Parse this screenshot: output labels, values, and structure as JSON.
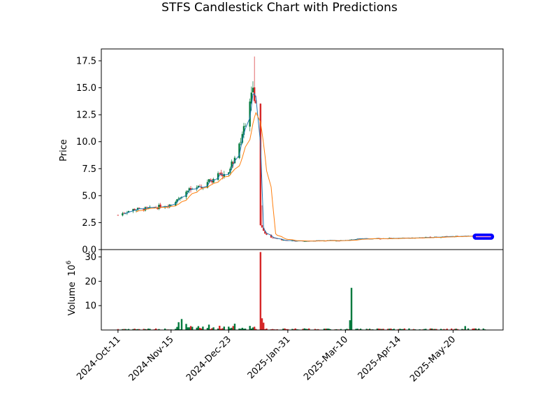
{
  "chart_data": {
    "type": "candlestick",
    "title": "STFS Candlestick Chart with Predictions",
    "price_panel": {
      "ylabel": "Price",
      "ylim": [
        0,
        18.6
      ],
      "yticks": [
        "0.0",
        "2.5",
        "5.0",
        "7.5",
        "10.0",
        "12.5",
        "15.0",
        "17.5"
      ],
      "ytick_values": [
        0,
        2.5,
        5,
        7.5,
        10,
        12.5,
        15,
        17.5
      ]
    },
    "volume_panel": {
      "ylabel": "Volume",
      "yunit": "10",
      "yunit_exp": "6",
      "ylim": [
        0,
        33
      ],
      "yticks": [
        "10",
        "20",
        "30"
      ],
      "ytick_values": [
        10,
        20,
        30
      ]
    },
    "x_axis": {
      "start": "2024-09-30",
      "end": "2025-06-22",
      "ticks": [
        "2024-Oct-11",
        "2024-Nov-15",
        "2024-Dec-23",
        "2025-Jan-31",
        "2025-Mar-10",
        "2025-Apr-14",
        "2025-May-20"
      ],
      "tick_dates": [
        "2024-10-11",
        "2024-11-15",
        "2024-12-23",
        "2025-01-31",
        "2025-03-10",
        "2025-04-14",
        "2025-05-20"
      ]
    },
    "price_anchors": [
      [
        "2024-10-11",
        3.2
      ],
      [
        "2024-10-20",
        3.7
      ],
      [
        "2024-11-01",
        3.8
      ],
      [
        "2024-11-15",
        4.2
      ],
      [
        "2024-11-25",
        5.4
      ],
      [
        "2024-12-05",
        5.8
      ],
      [
        "2024-12-15",
        6.8
      ],
      [
        "2024-12-23",
        7.3
      ],
      [
        "2024-12-30",
        9.5
      ],
      [
        "2025-01-03",
        12.0
      ],
      [
        "2025-01-07",
        15.0
      ],
      [
        "2025-01-10",
        14.0
      ],
      [
        "2025-01-13",
        2.3
      ],
      [
        "2025-01-16",
        1.5
      ],
      [
        "2025-01-20",
        1.1
      ],
      [
        "2025-01-31",
        0.8
      ],
      [
        "2025-03-10",
        0.85
      ],
      [
        "2025-03-20",
        1.0
      ],
      [
        "2025-04-14",
        1.05
      ],
      [
        "2025-05-20",
        1.2
      ],
      [
        "2025-06-10",
        1.25
      ]
    ],
    "volume_spikes": [
      [
        "2025-01-13",
        32.0
      ],
      [
        "2025-01-14",
        4.8
      ],
      [
        "2025-03-14",
        17.3
      ],
      [
        "2025-03-13",
        4.0
      ],
      [
        "2024-11-22",
        4.5
      ],
      [
        "2024-11-20",
        3.2
      ],
      [
        "2024-11-25",
        2.5
      ],
      [
        "2024-12-10",
        2.2
      ],
      [
        "2024-12-27",
        2.6
      ],
      [
        "2025-05-28",
        1.6
      ],
      [
        "2025-01-12",
        2.0
      ],
      [
        "2025-01-15",
        3.0
      ]
    ],
    "series": [
      {
        "name": "",
        "color": "#1f77b4",
        "kind": "fast-moving-average"
      },
      {
        "name": "",
        "color": "#ff7f0e",
        "kind": "slow-moving-average"
      },
      {
        "name": "",
        "color": "#0000ff",
        "kind": "predictions",
        "from": "2025-06-04",
        "to": "2025-06-14",
        "value": 1.2
      }
    ],
    "colors": {
      "up": "#007a3d",
      "down": "#d62728",
      "prediction_line": "#ff9ec7"
    },
    "grid": false
  }
}
